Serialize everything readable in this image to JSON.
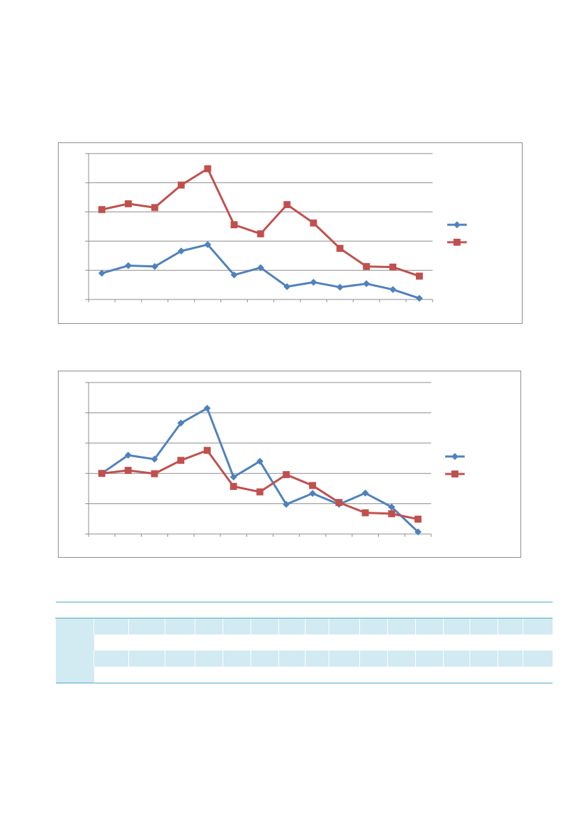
{
  "colors": {
    "series_a": "#4f81bd",
    "series_b": "#c0504d",
    "gridline": "#8c8c8c",
    "table_accent": "#4bacc6",
    "table_band": "#d2eaf1"
  },
  "chart_data": [
    {
      "type": "line",
      "grid": true,
      "legend": "right",
      "ylim": [
        0,
        5
      ],
      "x": [
        1,
        2,
        3,
        4,
        5,
        6,
        7,
        8,
        9,
        10,
        11,
        12,
        13
      ],
      "series": [
        {
          "marker": "diamond",
          "values": [
            0.9,
            1.16,
            1.13,
            1.66,
            1.88,
            0.84,
            1.09,
            0.44,
            0.59,
            0.42,
            0.54,
            0.34,
            0.04
          ]
        },
        {
          "marker": "square",
          "values": [
            3.08,
            3.28,
            3.15,
            3.92,
            4.48,
            2.56,
            2.25,
            3.25,
            2.62,
            1.75,
            1.13,
            1.11,
            0.8
          ]
        }
      ]
    },
    {
      "type": "line",
      "grid": true,
      "legend": "right",
      "ylim": [
        0,
        5
      ],
      "x": [
        1,
        2,
        3,
        4,
        5,
        6,
        7,
        8,
        9,
        10,
        11,
        12,
        13
      ],
      "series": [
        {
          "marker": "diamond",
          "values": [
            2.0,
            2.6,
            2.47,
            3.66,
            4.15,
            1.88,
            2.4,
            0.98,
            1.34,
            0.98,
            1.35,
            0.89,
            0.07
          ]
        },
        {
          "marker": "square",
          "values": [
            2.0,
            2.1,
            1.99,
            2.43,
            2.76,
            1.57,
            1.39,
            1.96,
            1.6,
            1.04,
            0.7,
            0.67,
            0.49
          ]
        }
      ]
    }
  ],
  "table": {
    "col_count": 17,
    "body_rows": 4
  }
}
